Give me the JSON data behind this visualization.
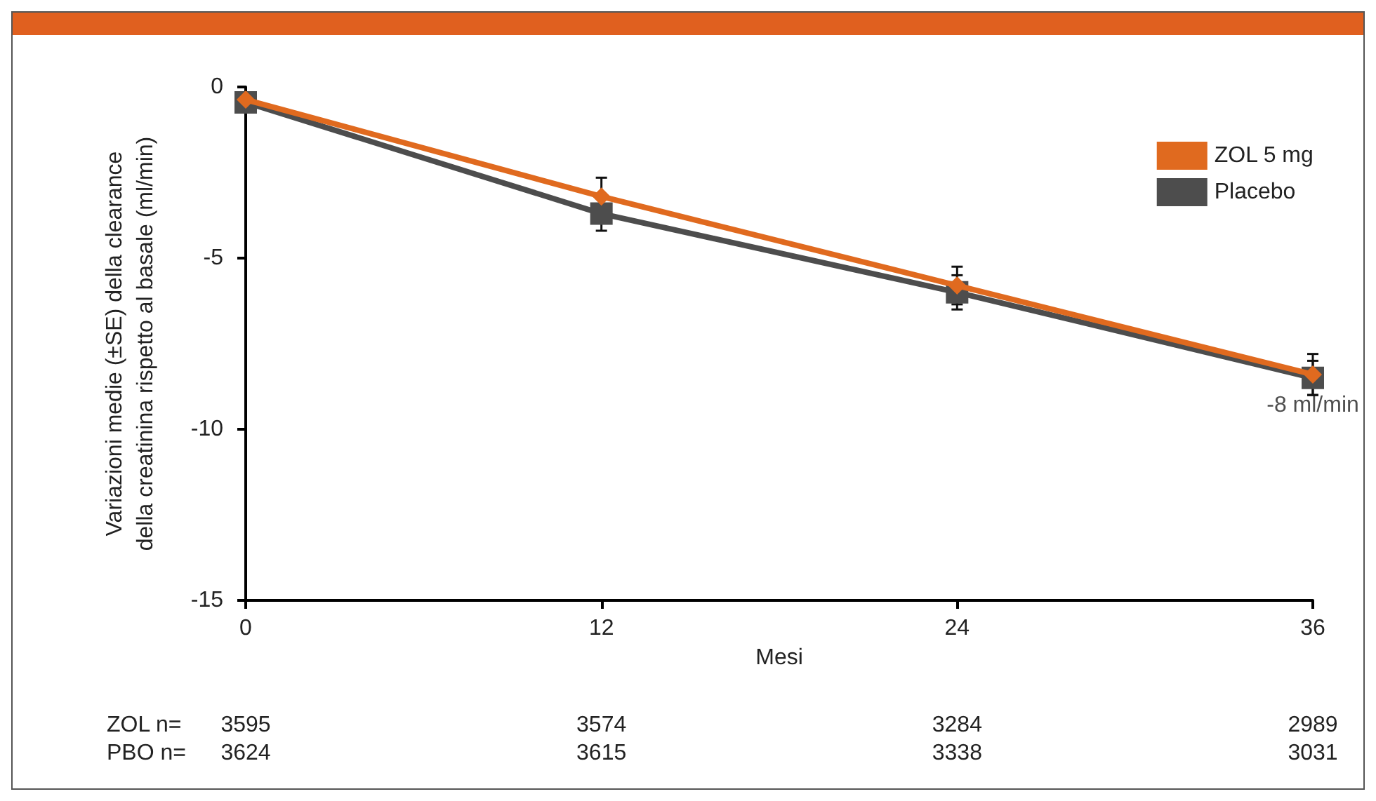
{
  "chart_data": {
    "type": "line",
    "xlabel": "Mesi",
    "ylabel": "Variazioni medie (±SE) della clearance\ndella creatinina rispetto al basale (ml/min)",
    "x": [
      0,
      12,
      24,
      36
    ],
    "xlim": [
      0,
      36
    ],
    "xticks": [
      0,
      12,
      24,
      36
    ],
    "ylim": [
      -15,
      0
    ],
    "yticks": [
      -15,
      -10,
      -5,
      0
    ],
    "series": [
      {
        "name": "Placebo",
        "color": "#4d4d4d",
        "marker": "square",
        "values": [
          -0.45,
          -3.7,
          -6.0,
          -8.5
        ],
        "errors": [
          null,
          0.5,
          0.5,
          0.5
        ]
      },
      {
        "name": "ZOL 5 mg",
        "color": "#e06a1f",
        "marker": "diamond",
        "values": [
          -0.37,
          -3.2,
          -5.8,
          -8.4
        ],
        "errors": [
          null,
          0.55,
          0.55,
          0.6
        ]
      }
    ],
    "legend": "top right",
    "grid": false,
    "line_style": "solid",
    "annotations": [
      {
        "text": "-8 ml/min",
        "x": 36,
        "y": -8.4
      },
      "ZOL n=",
      "3595",
      "3574",
      "3284",
      "2989",
      "PBO n=",
      "3624",
      "3615",
      "3338",
      "3031"
    ]
  }
}
